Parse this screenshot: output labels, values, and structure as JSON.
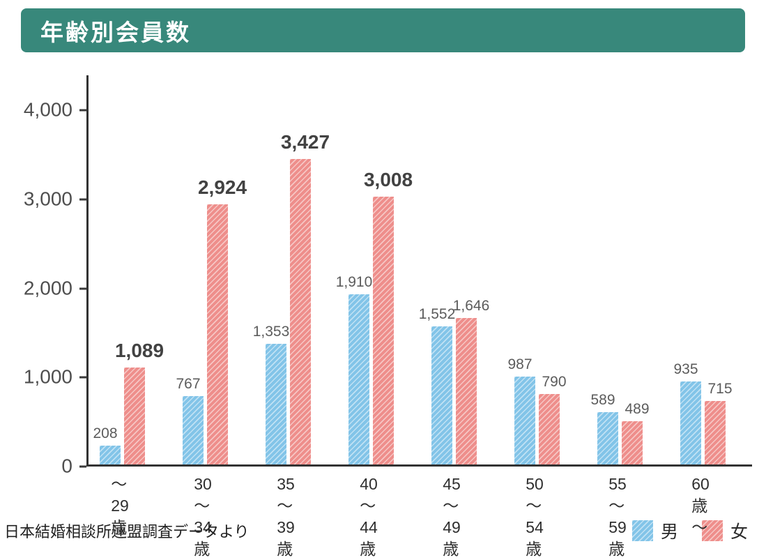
{
  "header": {
    "title": "年齢別会員数",
    "bg_color": "#38887b"
  },
  "footer": {
    "source": "日本結婚相談所連盟調査データより"
  },
  "chart_data": {
    "type": "bar",
    "title": "年齢別会員数",
    "categories": [
      "～29歳",
      "30\n～34歳",
      "35\n～39歳",
      "40\n～44歳",
      "45\n～49歳",
      "50\n～54歳",
      "55\n～59歳",
      "60歳～"
    ],
    "series": [
      {
        "name": "男",
        "color": "#82c4e8",
        "values": [
          208,
          767,
          1353,
          1910,
          1552,
          987,
          589,
          935
        ],
        "labels": [
          "208",
          "767",
          "1,353",
          "1,910",
          "1,552",
          "987",
          "589",
          "935"
        ],
        "emphasis": [
          false,
          false,
          false,
          false,
          false,
          false,
          false,
          false
        ]
      },
      {
        "name": "女",
        "color": "#ee8e8b",
        "values": [
          1089,
          2924,
          3427,
          3008,
          1646,
          790,
          489,
          715
        ],
        "labels": [
          "1,089",
          "2,924",
          "3,427",
          "3,008",
          "1,646",
          "790",
          "489",
          "715"
        ],
        "emphasis": [
          true,
          true,
          true,
          true,
          false,
          false,
          false,
          false
        ]
      }
    ],
    "ylim": [
      0,
      4000
    ],
    "yticks": [
      "4,000",
      "3,000",
      "2,000",
      "1,000",
      "0"
    ],
    "grid": false,
    "legend_position": "bottom-right",
    "axis_color": "#333333",
    "xlabel": "",
    "ylabel": ""
  }
}
